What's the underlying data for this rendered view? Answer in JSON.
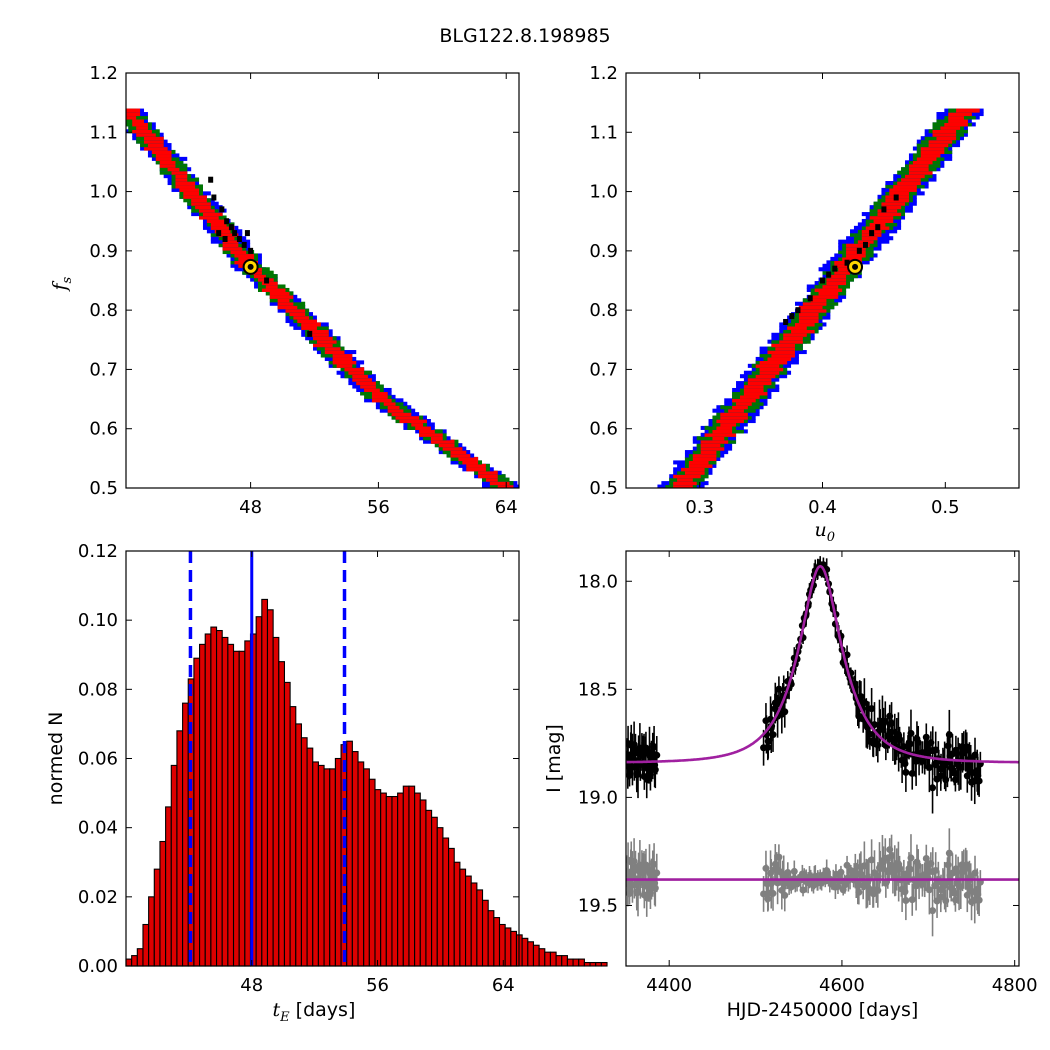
{
  "figure": {
    "title": "BLG122.8.198985"
  },
  "colors": {
    "ci99": "#0000ff",
    "ci95": "#007700",
    "ci68": "#ff0000",
    "chain": "#000000",
    "best": "#ffd700",
    "model": "#a020a0",
    "residual": "#808080",
    "hist_fill": "#dd0000",
    "vline": "#0000ff"
  },
  "chart_data": [
    {
      "id": "panel-ts-fs",
      "type": "heatmap",
      "xlabel": "",
      "ylabel_base": "f",
      "ylabel_sub": "s",
      "xlim": [
        40.2,
        64.8
      ],
      "ylim": [
        0.5,
        1.2
      ],
      "xticks": [
        48,
        56,
        64
      ],
      "yticks": [
        0.5,
        0.6,
        0.7,
        0.8,
        0.9,
        1.0,
        1.1,
        1.2
      ],
      "bands": {
        "center_line": [
          [
            40.2,
            1.14
          ],
          [
            48,
            0.875
          ],
          [
            56,
            0.655
          ],
          [
            64,
            0.5
          ]
        ],
        "half_widths": {
          "ci68": 0.055,
          "ci95": 0.075,
          "ci99": 0.095
        },
        "y_range": [
          0.5,
          1.14
        ]
      },
      "best_fit": {
        "x": 48,
        "y": 0.873
      },
      "chain_points": [
        [
          45.5,
          1.02
        ],
        [
          45.7,
          0.99
        ],
        [
          46.2,
          0.97
        ],
        [
          46.5,
          0.95
        ],
        [
          46.8,
          0.94
        ],
        [
          47.0,
          0.93
        ],
        [
          47.3,
          0.92
        ],
        [
          47.6,
          0.91
        ],
        [
          46.0,
          0.93
        ],
        [
          46.4,
          0.92
        ],
        [
          47.8,
          0.93
        ],
        [
          48.0,
          0.9
        ],
        [
          49.0,
          0.85
        ],
        [
          51.7,
          0.76
        ]
      ]
    },
    {
      "id": "panel-u0-fs",
      "type": "heatmap",
      "xlabel_base": "u",
      "xlabel_sub": "0",
      "xlim": [
        0.24,
        0.56
      ],
      "ylim": [
        0.5,
        1.2
      ],
      "xticks": [
        0.3,
        0.4,
        0.5
      ],
      "yticks": [
        0.5,
        0.6,
        0.7,
        0.8,
        0.9,
        1.0,
        1.1,
        1.2
      ],
      "bands": {
        "center_line": [
          [
            0.284,
            0.5
          ],
          [
            0.5155,
            1.14
          ]
        ],
        "half_widths": {
          "ci68": 0.009,
          "ci95": 0.013,
          "ci99": 0.017
        },
        "y_range": [
          0.5,
          1.14
        ]
      },
      "best_fit": {
        "x": 0.4265,
        "y": 0.873
      },
      "chain_points": [
        [
          0.4,
          0.85
        ],
        [
          0.405,
          0.86
        ],
        [
          0.41,
          0.87
        ],
        [
          0.43,
          0.9
        ],
        [
          0.435,
          0.91
        ],
        [
          0.44,
          0.93
        ],
        [
          0.445,
          0.94
        ],
        [
          0.38,
          0.8
        ],
        [
          0.375,
          0.79
        ],
        [
          0.37,
          0.78
        ],
        [
          0.45,
          0.97
        ],
        [
          0.46,
          0.99
        ],
        [
          0.39,
          0.82
        ],
        [
          0.42,
          0.88
        ]
      ]
    },
    {
      "id": "panel-hist-te",
      "type": "bar",
      "xlabel_base": "t",
      "xlabel_sub": "E",
      "xlabel_unit": " [days]",
      "ylabel": "normed N",
      "xlim": [
        40,
        65
      ],
      "ylim": [
        0,
        0.12
      ],
      "xticks": [
        48,
        56,
        64
      ],
      "yticks": [
        0.0,
        0.02,
        0.04,
        0.06,
        0.08,
        0.1,
        0.12
      ],
      "x0": 40,
      "bin_width": 0.36,
      "values": [
        0.002,
        0.003,
        0.005,
        0.012,
        0.02,
        0.028,
        0.036,
        0.046,
        0.058,
        0.068,
        0.076,
        0.083,
        0.089,
        0.093,
        0.096,
        0.098,
        0.097,
        0.095,
        0.093,
        0.091,
        0.091,
        0.094,
        0.096,
        0.101,
        0.106,
        0.103,
        0.095,
        0.088,
        0.082,
        0.075,
        0.07,
        0.066,
        0.063,
        0.059,
        0.058,
        0.057,
        0.057,
        0.06,
        0.064,
        0.065,
        0.062,
        0.059,
        0.057,
        0.054,
        0.051,
        0.05,
        0.049,
        0.049,
        0.05,
        0.052,
        0.052,
        0.05,
        0.048,
        0.045,
        0.043,
        0.04,
        0.037,
        0.034,
        0.03,
        0.028,
        0.026,
        0.024,
        0.022,
        0.019,
        0.016,
        0.014,
        0.012,
        0.011,
        0.01,
        0.009,
        0.008,
        0.007,
        0.006,
        0.005,
        0.004,
        0.004,
        0.003,
        0.003,
        0.002,
        0.002,
        0.002,
        0.001,
        0.001,
        0.001,
        0.001
      ],
      "median": 48,
      "ci_lower": 44.1,
      "ci_upper": 53.9
    },
    {
      "id": "panel-lightcurve",
      "type": "scatter",
      "xlabel": "HJD-2450000 [days]",
      "ylabel": "I [mag]",
      "xlim": [
        4350,
        4805
      ],
      "ylim": [
        19.78,
        17.86
      ],
      "xticks": [
        4400,
        4600,
        4800
      ],
      "yticks": [
        18.0,
        18.5,
        19.0,
        19.5
      ],
      "model": {
        "t0": 4575,
        "tE": 48,
        "u0": 0.4265,
        "fs": 0.873,
        "baseline": 18.84
      },
      "residual_baseline": 19.38,
      "data_groups": [
        {
          "t_start": 4350,
          "t_end": 4385,
          "n": 40
        },
        {
          "t_start": 4510,
          "t_end": 4760,
          "n": 190
        }
      ]
    }
  ]
}
